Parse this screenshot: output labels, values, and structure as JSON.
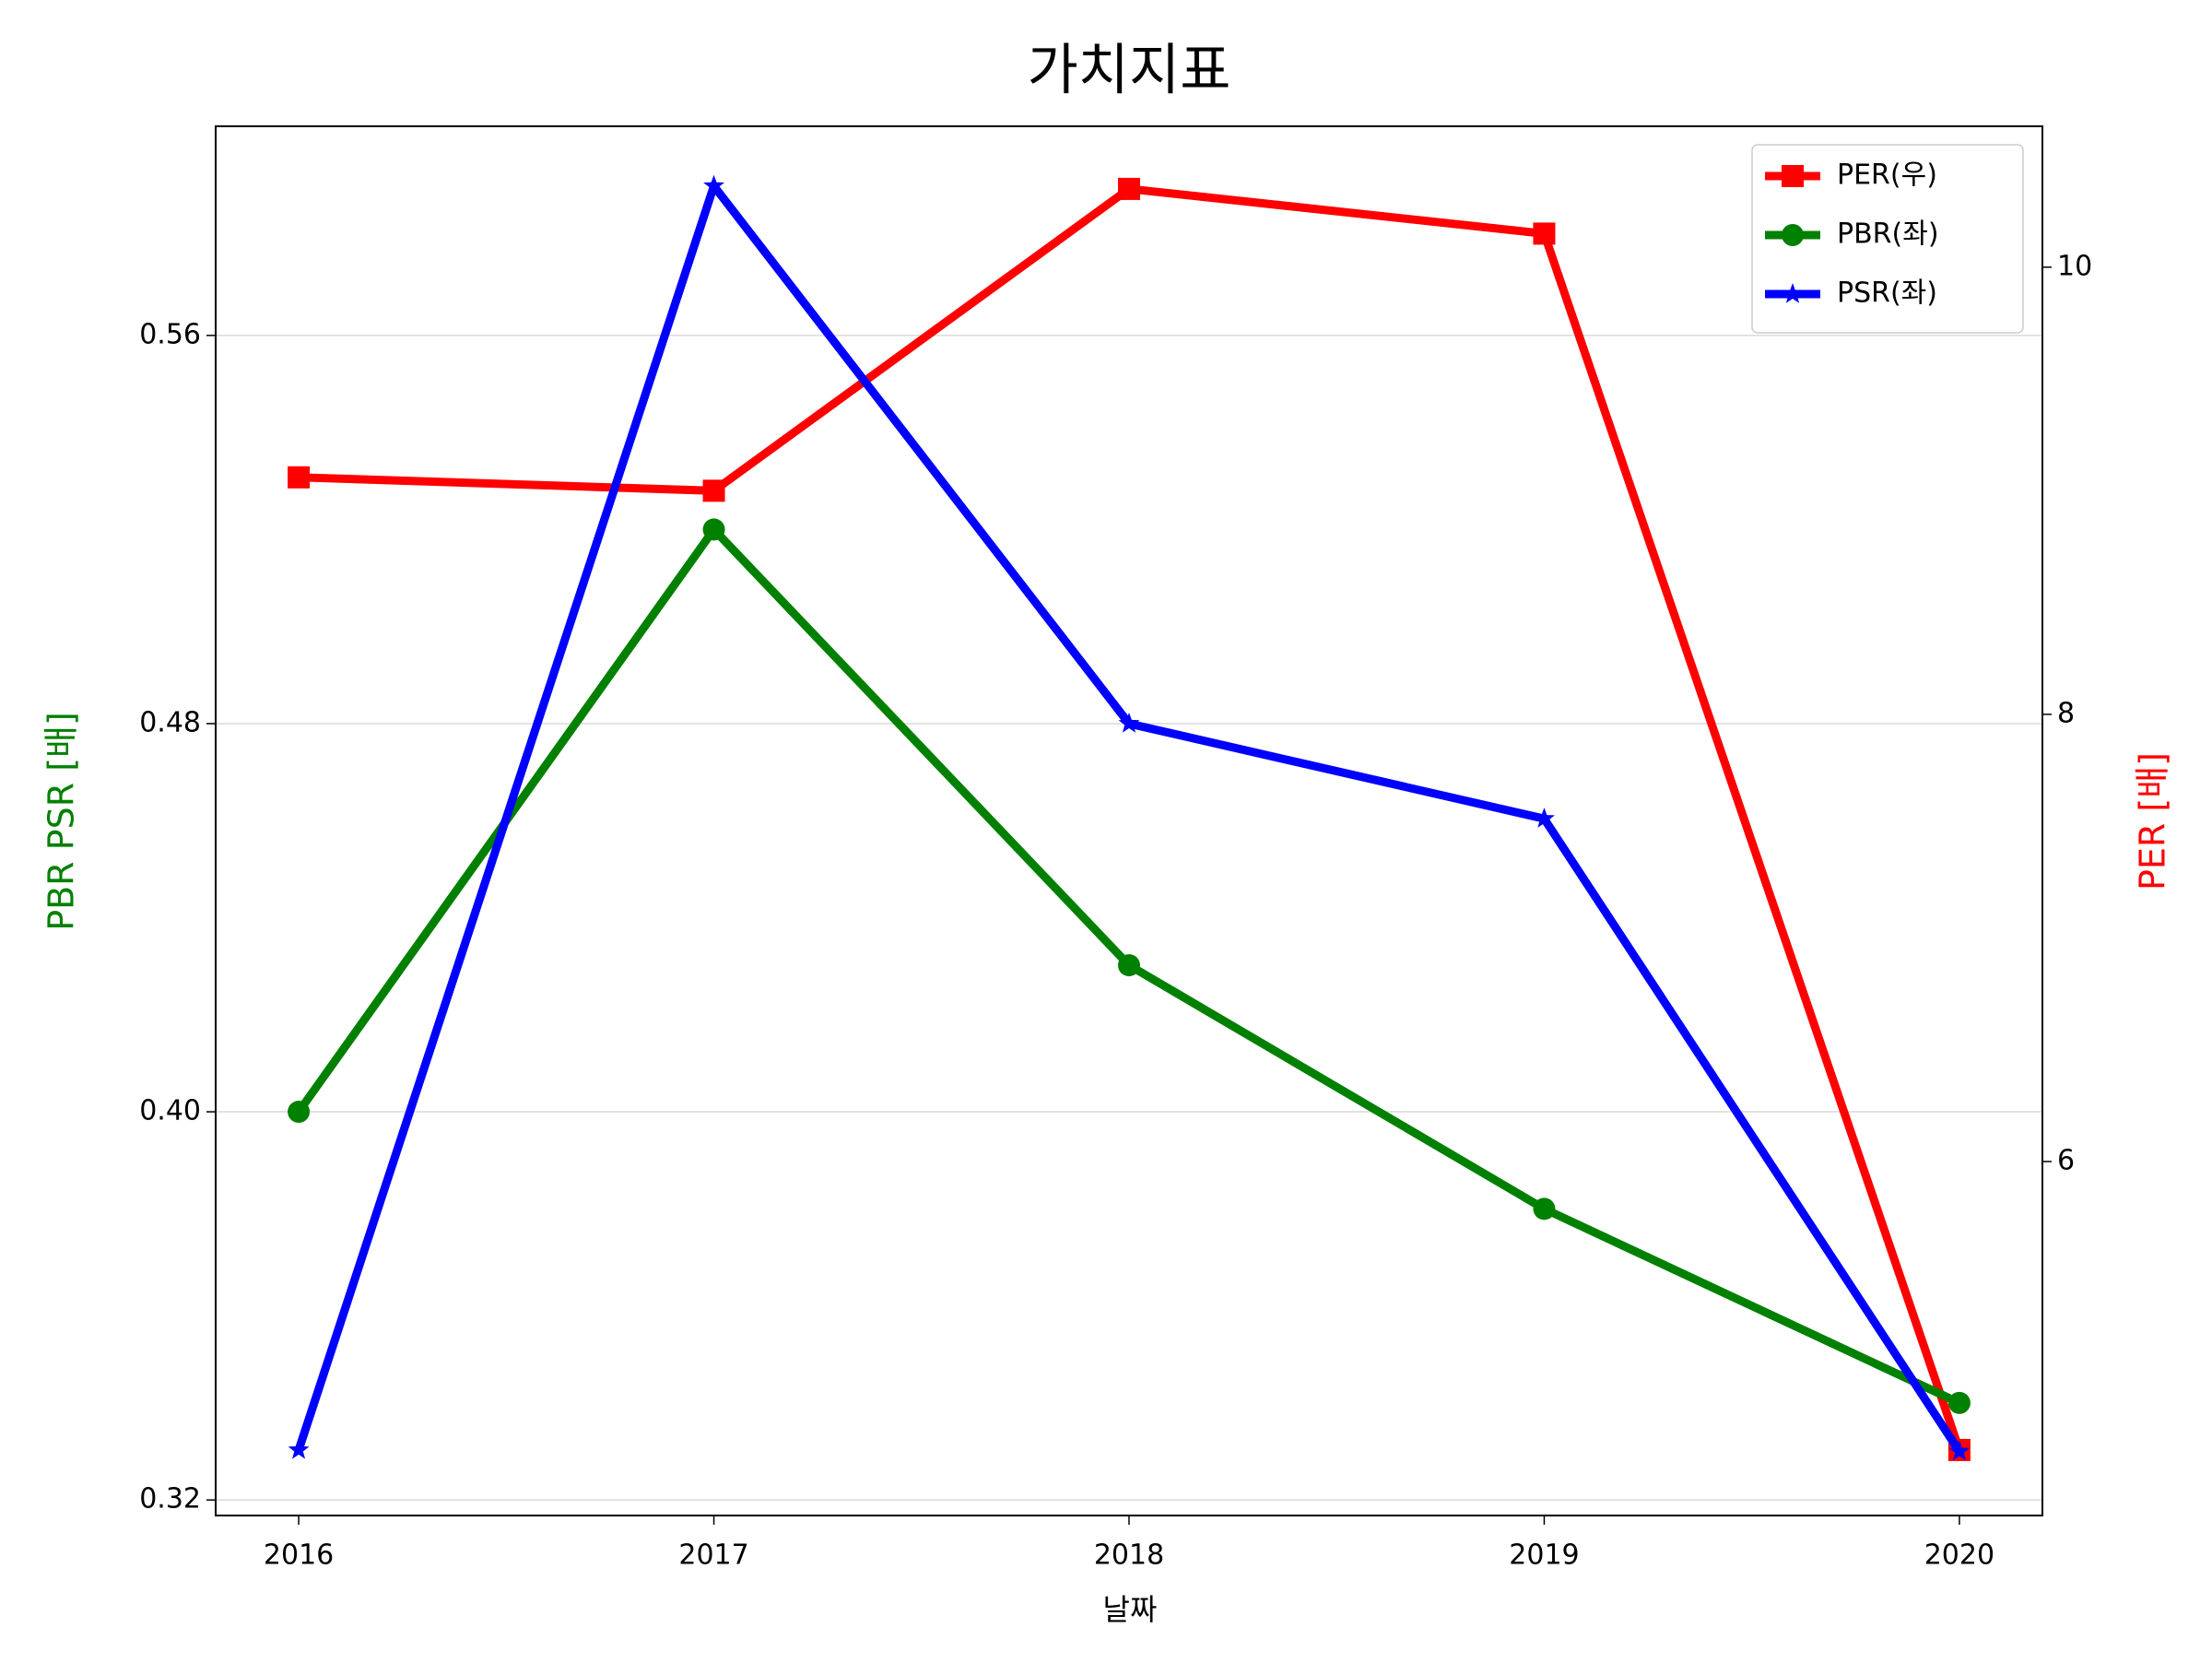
{
  "chart_data": {
    "type": "line",
    "title": "가치지표",
    "x_label": "날짜",
    "y_label": "PBR PSR [배]",
    "y2_label": "PER [배]",
    "y_label_color": "green",
    "y2_label_color": "red",
    "x": [
      2016,
      2017,
      2018,
      2019,
      2020
    ],
    "xlim": [
      2015.8,
      2020.2
    ],
    "xticks": [
      2016,
      2017,
      2018,
      2019,
      2020
    ],
    "ylim": [
      0.3168,
      0.6031
    ],
    "yticks": [
      0.32,
      {
        "value": 0.4,
        "label": "0.40"
      },
      0.48,
      0.56
    ],
    "y2lim": [
      4.417,
      10.63
    ],
    "y2ticks": [
      6,
      8,
      10
    ],
    "grid": true,
    "legend": "upper right",
    "series": [
      {
        "name": "PER(우)",
        "color": "#ff0000",
        "marker": "square",
        "axis": "y2",
        "values": [
          9.06,
          9.0,
          10.35,
          10.15,
          4.71
        ]
      },
      {
        "name": "PBR(좌)",
        "color": "#008000",
        "marker": "circle",
        "values": [
          0.4,
          0.52,
          0.4302,
          0.38,
          0.34
        ]
      },
      {
        "name": "PSR(좌)",
        "color": "#0000ff",
        "marker": "star",
        "values": [
          0.3303,
          0.5908,
          0.48,
          0.4604,
          0.33
        ]
      }
    ]
  }
}
